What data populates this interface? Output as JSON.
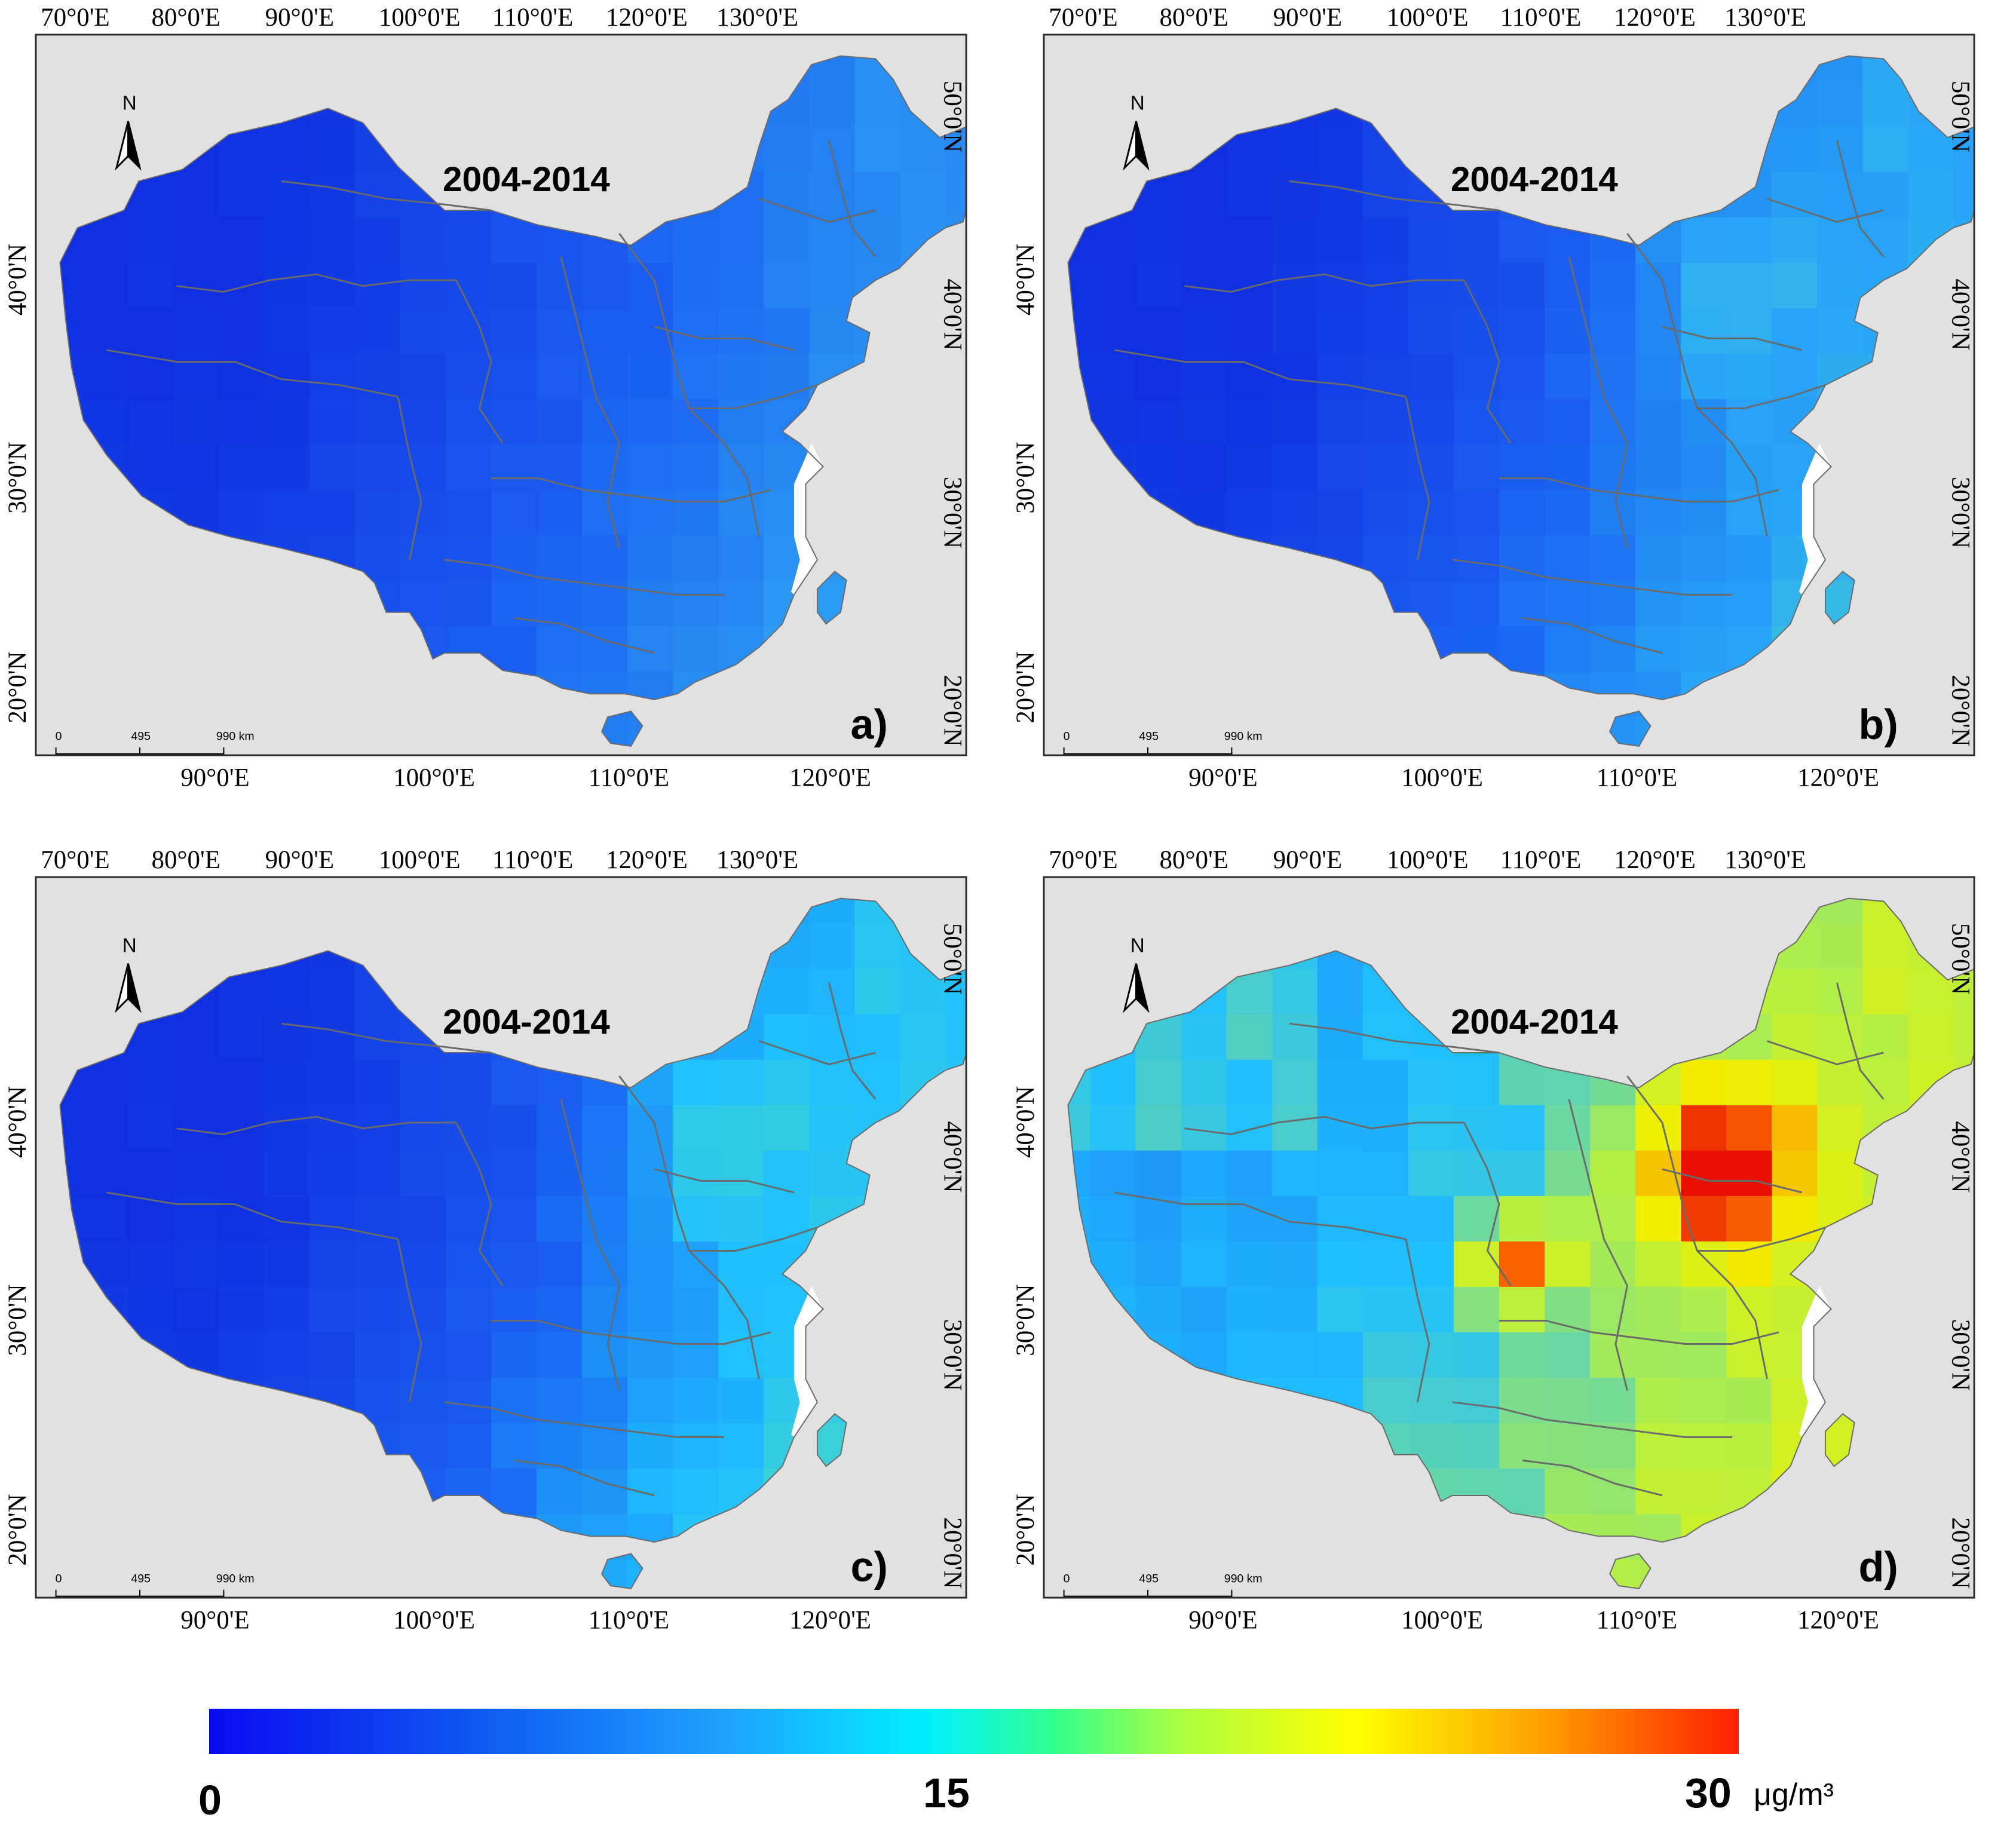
{
  "panels": [
    {
      "label": "a)",
      "title": "2004-2014",
      "scheme": "a"
    },
    {
      "label": "b)",
      "title": "2004-2014",
      "scheme": "b"
    },
    {
      "label": "c)",
      "title": "2004-2014",
      "scheme": "c"
    },
    {
      "label": "d)",
      "title": "2004-2014",
      "scheme": "d"
    }
  ],
  "axes": {
    "top_lon": [
      "70°0'E",
      "80°0'E",
      "90°0'E",
      "100°0'E",
      "110°0'E",
      "120°0'E",
      "130°0'E"
    ],
    "bottom_lon": [
      "90°0'E",
      "100°0'E",
      "110°0'E",
      "120°0'E"
    ],
    "left_lat": [
      "40°0'N",
      "30°0'N",
      "20°0'N"
    ],
    "right_lat": [
      "50°0'N",
      "40°0'N",
      "30°0'N",
      "20°0'N"
    ]
  },
  "north_arrow": "N",
  "scale_bar": {
    "ticks": [
      "0",
      "495",
      "990 km"
    ]
  },
  "colorbar": {
    "min_label": "0",
    "mid_label": "15",
    "max_label": "30",
    "unit": "μg/m³",
    "colors": [
      "#0a0af0",
      "#1ea3ff",
      "#00f0ff",
      "#b0ff3c",
      "#ffff00",
      "#ffa000",
      "#ff2000"
    ]
  },
  "colors": {
    "background": "#e1e1e1",
    "frame": "#2a2a2a",
    "boundary": "#6a6a6a",
    "sea_white": "#ffffff"
  }
}
